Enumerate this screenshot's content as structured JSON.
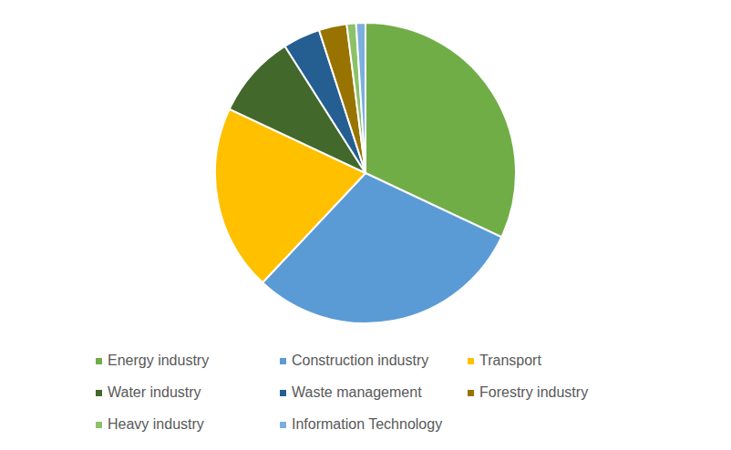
{
  "chart_data": {
    "type": "pie",
    "categories": [
      "Energy industry",
      "Construction industry",
      "Transport",
      "Water industry",
      "Waste management",
      "Forestry industry",
      "Heavy industry",
      "Information Technology"
    ],
    "values": [
      32,
      30,
      20,
      9,
      4,
      3,
      1,
      1
    ],
    "colors": [
      "#70ad47",
      "#5b9bd5",
      "#ffc000",
      "#43682b",
      "#255e91",
      "#997300",
      "#8cc168",
      "#7cafdd"
    ],
    "legend": "bottom"
  }
}
